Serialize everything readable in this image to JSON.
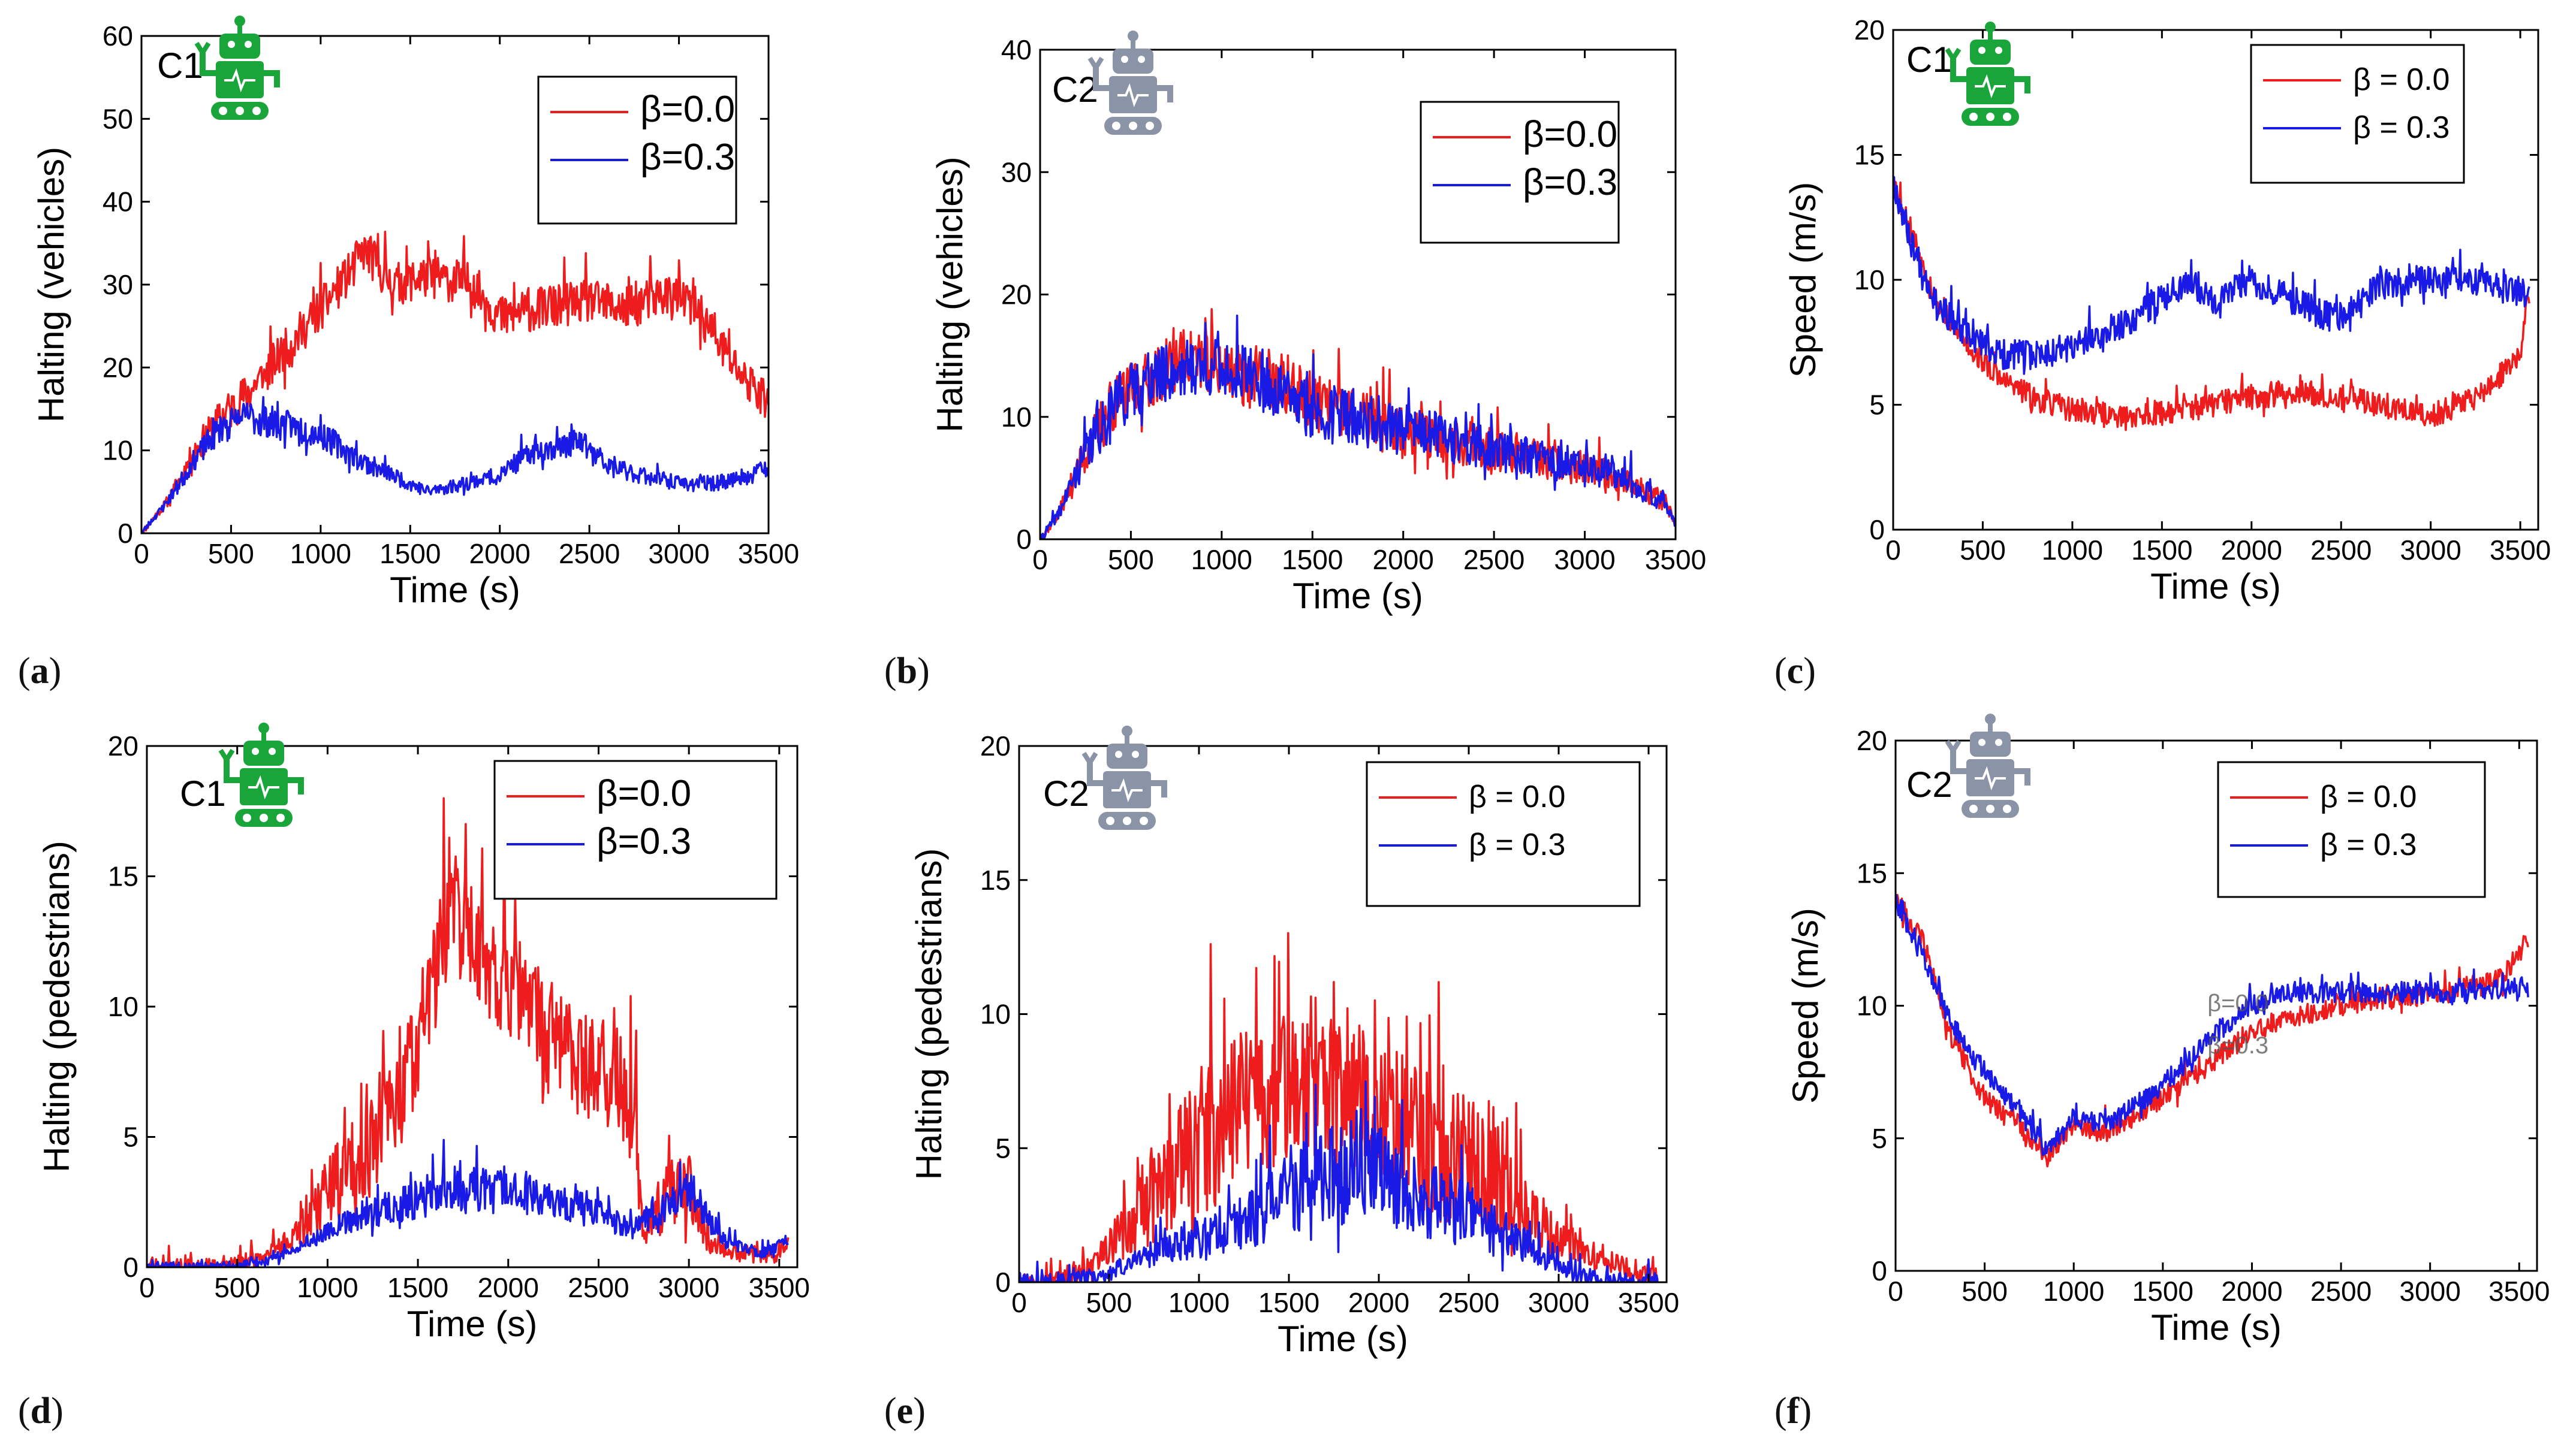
{
  "colors": {
    "red": "#ee1c1c",
    "blue": "#1a1ae6",
    "robot_green": "#1aa53a",
    "robot_gray": "#8a94a6"
  },
  "panels": [
    {
      "id": "a",
      "label": "a",
      "tag": "C1",
      "robot": "green",
      "legend_style": "plain",
      "chart_data": {
        "type": "line",
        "title": "",
        "xlabel": "Time (s)",
        "ylabel": "Halting  (vehicles)",
        "xlim": [
          0,
          3500
        ],
        "ylim": [
          0,
          60
        ],
        "xticks": [
          "0",
          "500",
          "1000",
          "1500",
          "2000",
          "2500",
          "3000",
          "3500"
        ],
        "yticks": [
          "0",
          "10",
          "20",
          "30",
          "40",
          "50",
          "60"
        ],
        "series": [
          {
            "name": "β=0.0",
            "color": "#ee1c1c",
            "seed": 11,
            "noise": 2.6,
            "period": 8,
            "x": [
              0,
              150,
              300,
              450,
              600,
              800,
              1000,
              1150,
              1250,
              1400,
              1600,
              1850,
              2000,
              2200,
              2500,
              2700,
              2950,
              3100,
              3250,
              3350,
              3450,
              3500
            ],
            "y": [
              0,
              4,
              10,
              14,
              17,
              22,
              27,
              31,
              34,
              30,
              31,
              30,
              26,
              27,
              28,
              27,
              29,
              27,
              22,
              19,
              17,
              16
            ]
          },
          {
            "name": "β=0.3",
            "color": "#1a1ae6",
            "seed": 23,
            "noise": 2.2,
            "period": 8,
            "x": [
              0,
              150,
              300,
              450,
              600,
              800,
              1000,
              1200,
              1400,
              1600,
              1800,
              2000,
              2200,
              2450,
              2600,
              2800,
              3000,
              3200,
              3400,
              3500
            ],
            "y": [
              0,
              4,
              9,
              13,
              14,
              13,
              12,
              9,
              7,
              5,
              6,
              7,
              10,
              11,
              8,
              7,
              6,
              6,
              7,
              8
            ]
          }
        ]
      }
    },
    {
      "id": "b",
      "label": "b",
      "tag": "C2",
      "robot": "gray",
      "legend_style": "plain",
      "chart_data": {
        "type": "line",
        "title": "",
        "xlabel": "Time (s)",
        "ylabel": "Halting  (vehicles)",
        "xlim": [
          0,
          3500
        ],
        "ylim": [
          0,
          40
        ],
        "xticks": [
          "0",
          "500",
          "1000",
          "1500",
          "2000",
          "2500",
          "3000",
          "3500"
        ],
        "yticks": [
          "0",
          "10",
          "20",
          "30",
          "40"
        ],
        "series": [
          {
            "name": "β=0.0",
            "color": "#ee1c1c",
            "seed": 37,
            "noise": 2.4,
            "period": 7,
            "x": [
              0,
              100,
              250,
              400,
              600,
              800,
              1000,
              1200,
              1400,
              1700,
              2000,
              2300,
              2600,
              2900,
              3200,
              3450,
              3500
            ],
            "y": [
              0,
              2,
              7,
              11,
              13,
              15,
              14,
              13,
              12,
              10,
              9,
              8,
              7,
              6,
              5,
              3,
              1
            ]
          },
          {
            "name": "β=0.3",
            "color": "#1a1ae6",
            "seed": 41,
            "noise": 2.4,
            "period": 7,
            "x": [
              0,
              100,
              250,
              400,
              600,
              800,
              1000,
              1200,
              1400,
              1700,
              2000,
              2300,
              2600,
              2900,
              3200,
              3450,
              3500
            ],
            "y": [
              0,
              2,
              7,
              11,
              13,
              14,
              14,
              13,
              11,
              10,
              9,
              8,
              7,
              6,
              5,
              3,
              1
            ]
          }
        ]
      }
    },
    {
      "id": "c",
      "label": "c",
      "tag": "C1",
      "robot": "green",
      "legend_style": "spaced",
      "chart_data": {
        "type": "line",
        "title": "",
        "xlabel": "Time (s)",
        "ylabel": "Speed (m/s)",
        "xlim": [
          0,
          3600
        ],
        "ylim": [
          0,
          20
        ],
        "xticks": [
          "0",
          "500",
          "1000",
          "1500",
          "2000",
          "2500",
          "3000",
          "3500"
        ],
        "yticks": [
          "0",
          "5",
          "10",
          "15",
          "20"
        ],
        "series": [
          {
            "name": "β = 0.0",
            "color": "#ee1c1c",
            "seed": 53,
            "noise": 0.5,
            "period": 8,
            "x": [
              0,
              100,
              250,
              400,
              600,
              800,
              1000,
              1300,
              1600,
              2000,
              2300,
              2600,
              3000,
              3300,
              3500,
              3550
            ],
            "y": [
              14,
              12,
              9,
              7.5,
              6,
              5.2,
              4.8,
              4.5,
              4.8,
              5.3,
              5.5,
              5.2,
              4.5,
              5.5,
              7,
              9.5
            ]
          },
          {
            "name": "β = 0.3",
            "color": "#1a1ae6",
            "seed": 67,
            "noise": 0.6,
            "period": 8,
            "x": [
              0,
              100,
              250,
              400,
              600,
              800,
              1000,
              1200,
              1400,
              1650,
              1800,
              2000,
              2200,
              2400,
              2550,
              2700,
              3000,
              3300,
              3500,
              3550
            ],
            "y": [
              14,
              11.5,
              9,
              7.8,
              7,
              7,
              7.3,
              7.8,
              8.8,
              10,
              9.2,
              10,
              9.3,
              8.6,
              8.5,
              9.8,
              10,
              9.8,
              9.5,
              9.2
            ]
          }
        ]
      }
    },
    {
      "id": "d",
      "label": "d",
      "tag": "C1",
      "robot": "green",
      "legend_style": "plain",
      "chart_data": {
        "type": "line",
        "title": "",
        "xlabel": "Time (s)",
        "ylabel": "Halting (pedestrians)",
        "xlim": [
          0,
          3600
        ],
        "ylim": [
          0,
          20
        ],
        "xticks": [
          "0",
          "500",
          "1000",
          "1500",
          "2000",
          "2500",
          "3000",
          "3500"
        ],
        "yticks": [
          "0",
          "5",
          "10",
          "15",
          "20"
        ],
        "series": [
          {
            "name": "β=0.0",
            "color": "#ee1c1c",
            "seed": 71,
            "noise": 2.2,
            "period": 6,
            "floor": 0,
            "x": [
              0,
              400,
              600,
              800,
              1000,
              1200,
              1400,
              1550,
              1700,
              1850,
              2000,
              2200,
              2400,
              2600,
              2700,
              2750,
              2900,
              3000,
              3100,
              3300,
              3500,
              3550
            ],
            "y": [
              0,
              0,
              0.3,
              1,
              3,
              4.5,
              6.5,
              10,
              14,
              12,
              11,
              9,
              8,
              7,
              6,
              1,
              3,
              3,
              1,
              0.5,
              0.5,
              1
            ]
          },
          {
            "name": "β=0.3",
            "color": "#1a1ae6",
            "seed": 83,
            "noise": 1.4,
            "period": 6,
            "floor": 0,
            "x": [
              0,
              500,
              700,
              900,
              1100,
              1300,
              1500,
              1700,
              1900,
              2100,
              2300,
              2500,
              2700,
              2900,
              3000,
              3200,
              3400,
              3550
            ],
            "y": [
              0,
              0,
              0.3,
              1,
              1.8,
              2.2,
              2.6,
              3,
              3,
              2.8,
              2.5,
              2,
              1.5,
              2.5,
              3,
              1,
              0.5,
              1
            ]
          }
        ]
      }
    },
    {
      "id": "e",
      "label": "e",
      "tag": "C2",
      "robot": "gray",
      "legend_style": "spaced",
      "chart_data": {
        "type": "line",
        "title": "",
        "xlabel": "Time (s)",
        "ylabel": "Halting (pedestrians)",
        "xlim": [
          0,
          3600
        ],
        "ylim": [
          0,
          20
        ],
        "xticks": [
          "0",
          "500",
          "1000",
          "1500",
          "2000",
          "2500",
          "3000",
          "3500"
        ],
        "yticks": [
          "0",
          "5",
          "10",
          "15",
          "20"
        ],
        "series": [
          {
            "name": "β = 0.0",
            "color": "#ee1c1c",
            "seed": 97,
            "noise": 2.8,
            "period": 5,
            "floor": 0,
            "x": [
              0,
              150,
              400,
              600,
              800,
              1000,
              1200,
              1500,
              1800,
              2000,
              2200,
              2500,
              2700,
              2900,
              3200,
              3450,
              3550
            ],
            "y": [
              0,
              0,
              0.5,
              2,
              3.5,
              5,
              6.5,
              7,
              7,
              6.5,
              5.5,
              4.5,
              3.5,
              2,
              0.8,
              0.4,
              0.2
            ]
          },
          {
            "name": "β = 0.3",
            "color": "#1a1ae6",
            "seed": 101,
            "noise": 2.4,
            "period": 5,
            "floor": 0,
            "x": [
              0,
              300,
              500,
              700,
              900,
              1100,
              1300,
              1500,
              1700,
              1900,
              2100,
              2300,
              2500,
              2700,
              2900,
              3100,
              3300,
              3550
            ],
            "y": [
              0,
              0,
              0.3,
              1,
              1.5,
              1.8,
              2.5,
              3.5,
              4,
              4.2,
              3.8,
              3,
              2.5,
              1.8,
              1,
              0.3,
              0,
              0
            ]
          }
        ]
      }
    },
    {
      "id": "f",
      "label": "f",
      "tag": "C2",
      "robot": "gray",
      "legend_style": "spaced",
      "chart_data": {
        "type": "line",
        "title": "",
        "xlabel": "Time (s)",
        "ylabel": "Speed (m/s)",
        "xlim": [
          0,
          3600
        ],
        "ylim": [
          0,
          20
        ],
        "xticks": [
          "0",
          "500",
          "1000",
          "1500",
          "2000",
          "2500",
          "3000",
          "3500"
        ],
        "yticks": [
          "0",
          "5",
          "10",
          "15",
          "20"
        ],
        "annotations": [
          "β=0.0",
          "β=0.3"
        ],
        "series": [
          {
            "name": "β = 0.0",
            "color": "#ee1c1c",
            "seed": 113,
            "noise": 0.4,
            "period": 8,
            "x": [
              0,
              150,
              300,
              500,
              700,
              850,
              1000,
              1200,
              1500,
              1800,
              2000,
              2200,
              2500,
              2800,
              3100,
              3400,
              3550
            ],
            "y": [
              14,
              12.5,
              9,
              6.5,
              5.5,
              4.2,
              5.5,
              5.2,
              6.5,
              8,
              9,
              9.5,
              10,
              10.3,
              10.5,
              11,
              12.5
            ]
          },
          {
            "name": "β = 0.3",
            "color": "#1a1ae6",
            "seed": 127,
            "noise": 0.4,
            "period": 8,
            "x": [
              0,
              150,
              300,
              500,
              700,
              850,
              1000,
              1200,
              1500,
              1800,
              2000,
              2200,
              2500,
              2800,
              3100,
              3400,
              3550
            ],
            "y": [
              14,
              12,
              9.5,
              7.5,
              6,
              4.5,
              5.8,
              5.5,
              7,
              9,
              10,
              10.5,
              10.5,
              10.5,
              10.5,
              10.6,
              10.7
            ]
          }
        ]
      }
    }
  ]
}
